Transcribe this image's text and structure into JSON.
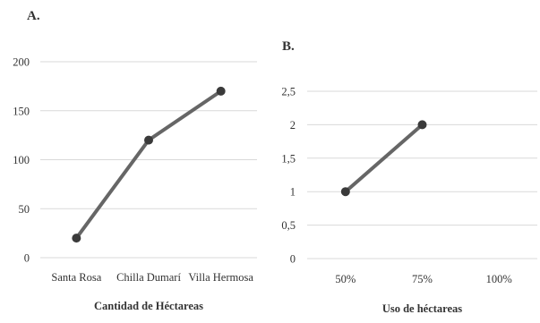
{
  "chart_data": [
    {
      "panel_label": "A.",
      "type": "line",
      "categories": [
        "Santa Rosa",
        "Chilla Dumarí",
        "Villa Hermosa"
      ],
      "series": [
        {
          "values": [
            20,
            120,
            170
          ]
        }
      ],
      "xlabel": "Cantidad de Héctareas",
      "ylabel": "",
      "ylim": [
        0,
        200
      ],
      "yticks": [
        "0",
        "50",
        "100",
        "150",
        "200"
      ],
      "grid": true,
      "legend": "none",
      "colors": {
        "line": "#666666",
        "marker": "#3a3a3a",
        "grid": "#d9d9d9"
      }
    },
    {
      "panel_label": "B.",
      "type": "line",
      "categories": [
        "50%",
        "75%",
        "100%"
      ],
      "series": [
        {
          "values": [
            1,
            2,
            null
          ]
        }
      ],
      "xlabel": "Uso de héctareas",
      "ylabel": "",
      "ylim": [
        0,
        2.5
      ],
      "yticks": [
        "0",
        "0,5",
        "1",
        "1,5",
        "2",
        "2,5"
      ],
      "grid": true,
      "legend": "none",
      "colors": {
        "line": "#666666",
        "marker": "#3a3a3a",
        "grid": "#d9d9d9"
      }
    }
  ]
}
